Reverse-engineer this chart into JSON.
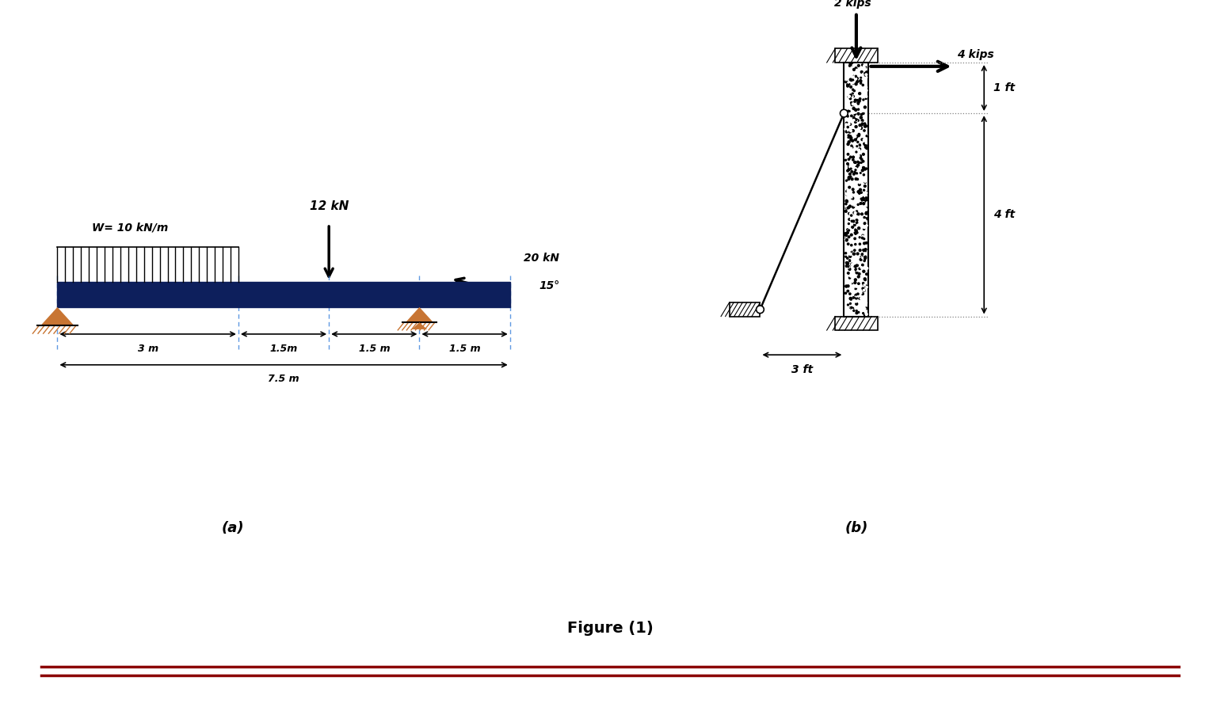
{
  "fig_width": 15.4,
  "fig_height": 8.98,
  "bg_color": "#ffffff",
  "title": "Figure (1)",
  "label_a": "(a)",
  "label_b": "(b)",
  "beam_color": "#0d1f5c",
  "distributed_load_label": "W= 10 kN/m",
  "point_load_label": "12 kN",
  "angled_load_label": "20 kN",
  "angle_label": "15°",
  "dim1": "3 m",
  "dim2": "1.5m",
  "dim3": "1.5 m",
  "dim4": "1.5 m",
  "dim_total": "7.5 m",
  "col_load_top": "2 kips",
  "col_load_side": "4 kips",
  "col_dim1": "1 ft",
  "col_dim2": "4 ft",
  "col_dim3": "3 ft",
  "footer_lines_color": "#8b0000",
  "support_color": "#c87533",
  "support_hatch_color": "#d4853a"
}
